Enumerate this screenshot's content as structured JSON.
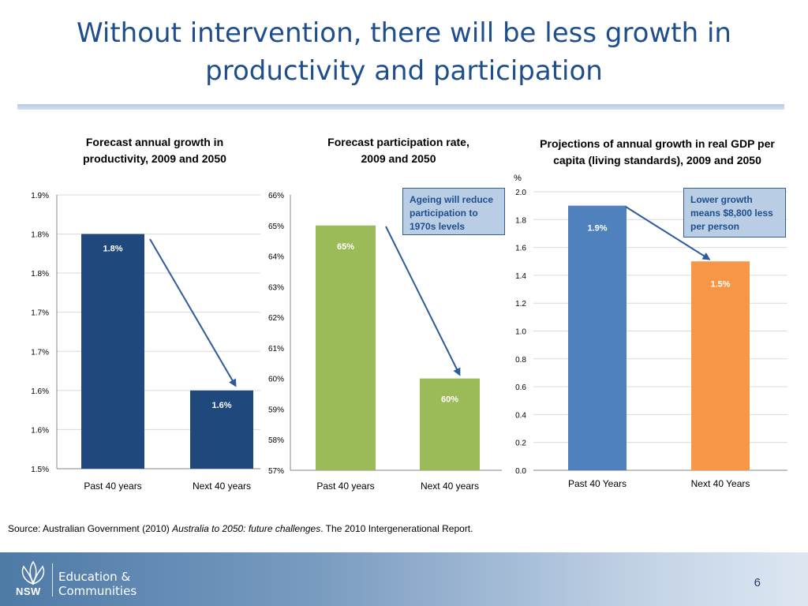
{
  "slide": {
    "title": "Without intervention, there will be less growth in productivity and participation",
    "source_prefix": "Source: Australian Government (2010) ",
    "source_italic": "Australia to 2050: future challenges",
    "source_suffix": ". The 2010 Intergenerational Report.",
    "page_number": "6"
  },
  "logo": {
    "org": "NSW",
    "line1": "Education &",
    "line2": "Communities"
  },
  "colors": {
    "title": "#1f4e8c",
    "navy_bar": "#1f497d",
    "green_bar": "#9bbb59",
    "blue_bar": "#4f81bd",
    "orange_bar": "#f79646",
    "arrow": "#2e5c9a",
    "callout_bg": "#b9cde5"
  },
  "chart_data": [
    {
      "type": "bar",
      "title": "Forecast annual growth in productivity, 2009 and 2050",
      "categories": [
        "Past 40 years",
        "Next 40 years"
      ],
      "values": [
        1.8,
        1.6
      ],
      "data_labels": [
        "1.8%",
        "1.6%"
      ],
      "y_ticks": [
        "1.5%",
        "1.6%",
        "1.6%",
        "1.7%",
        "1.7%",
        "1.8%",
        "1.8%",
        "1.9%"
      ],
      "ylim": [
        1.5,
        1.85
      ],
      "grid": true,
      "color": "#1f497d",
      "arrow": "from first bar to second bar"
    },
    {
      "type": "bar",
      "title": "Forecast participation rate, 2009 and 2050",
      "categories": [
        "Past 40 years",
        "Next 40 years"
      ],
      "values": [
        65,
        60
      ],
      "data_labels": [
        "65%",
        "60%"
      ],
      "y_ticks": [
        "57%",
        "58%",
        "59%",
        "60%",
        "61%",
        "62%",
        "63%",
        "64%",
        "65%",
        "66%"
      ],
      "ylim": [
        57,
        66
      ],
      "grid": false,
      "color": "#9bbb59",
      "annotation": "Ageing will reduce participation to 1970s levels"
    },
    {
      "type": "bar",
      "title": "Projections of annual growth in real GDP per capita (living standards), 2009 and 2050",
      "ylabel": "%",
      "categories": [
        "Past 40 Years",
        "Next 40 Years"
      ],
      "values": [
        1.9,
        1.5
      ],
      "data_labels": [
        "1.9%",
        "1.5%"
      ],
      "y_ticks": [
        "0.0",
        "0.2",
        "0.4",
        "0.6",
        "0.8",
        "1.0",
        "1.2",
        "1.4",
        "1.6",
        "1.8",
        "2.0"
      ],
      "ylim": [
        0,
        2.0
      ],
      "grid": true,
      "colors": [
        "#4f81bd",
        "#f79646"
      ],
      "annotation": "Lower growth means $8,800 less per person"
    }
  ]
}
